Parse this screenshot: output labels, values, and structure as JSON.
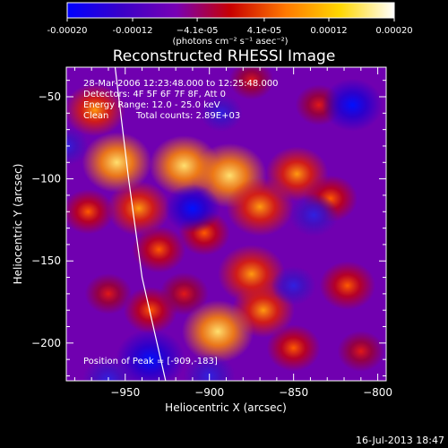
{
  "chart_data": {
    "type": "heatmap",
    "title": "Reconstructed RHESSI Image",
    "xlabel": "Heliocentric X (arcsec)",
    "ylabel": "Heliocentric Y (arcsec)",
    "xlim": [
      -985,
      -795
    ],
    "ylim": [
      -223,
      -32
    ],
    "x_ticks": [
      -950,
      -900,
      -850,
      -800
    ],
    "x_tick_labels": [
      "−950",
      "−900",
      "−850",
      "−800"
    ],
    "y_ticks": [
      -50,
      -100,
      -150,
      -200
    ],
    "y_tick_labels": [
      "−50",
      "−100",
      "−150",
      "−200"
    ],
    "colorbar": {
      "range": [
        -0.0002,
        0.0002
      ],
      "ticks": [
        -0.0002,
        -0.00012,
        -4.1e-05,
        4.1e-05,
        0.00012,
        0.0002
      ],
      "tick_labels": [
        "-0.00020",
        "-0.00012",
        "−4.1e-05",
        "4.1e-05",
        "0.00012",
        "0.00020"
      ],
      "units_label": "(photons cm⁻² s⁻¹ asec⁻²)",
      "colors": [
        "#0000ff",
        "#3a00c8",
        "#7800b4",
        "#c80000",
        "#ff7800",
        "#ffd700",
        "#ffffff"
      ]
    },
    "annotations": {
      "time_range": "28-Mar-2006 12:23:48.000 to 12:25:48.000",
      "detectors": "Detectors: 4F 5F 6F 7F 8F, Att 0",
      "energy_range": "Energy Range: 12.0 - 25.0 keV",
      "algorithm": "Clean",
      "total_counts": "Total counts: 2.89E+03",
      "peak_position": "Position of Peak = [-909,-183]"
    },
    "peak": {
      "x": -909,
      "y": -183
    },
    "limb_curve": [
      [
        -956,
        -32
      ],
      [
        -948,
        -100
      ],
      [
        -940,
        -160
      ],
      [
        -926,
        -223
      ]
    ],
    "blobs": [
      {
        "x": -968,
        "y": -58,
        "v": 0.7
      },
      {
        "x": -955,
        "y": -90,
        "v": 0.9
      },
      {
        "x": -942,
        "y": -118,
        "v": 0.75
      },
      {
        "x": -915,
        "y": -92,
        "v": 0.9
      },
      {
        "x": -888,
        "y": -98,
        "v": 1.0
      },
      {
        "x": -870,
        "y": -117,
        "v": 0.85
      },
      {
        "x": -848,
        "y": -97,
        "v": 0.75
      },
      {
        "x": -828,
        "y": -112,
        "v": 0.55
      },
      {
        "x": -903,
        "y": -133,
        "v": 0.5
      },
      {
        "x": -930,
        "y": -143,
        "v": 0.55
      },
      {
        "x": -875,
        "y": -158,
        "v": 0.85
      },
      {
        "x": -868,
        "y": -180,
        "v": 0.75
      },
      {
        "x": -895,
        "y": -193,
        "v": 0.95
      },
      {
        "x": -935,
        "y": -180,
        "v": 0.55
      },
      {
        "x": -850,
        "y": -203,
        "v": 0.55
      },
      {
        "x": -818,
        "y": -165,
        "v": 0.6
      },
      {
        "x": -810,
        "y": -205,
        "v": 0.4
      },
      {
        "x": -972,
        "y": -120,
        "v": 0.5
      },
      {
        "x": -960,
        "y": -170,
        "v": 0.4
      },
      {
        "x": -835,
        "y": -55,
        "v": 0.4
      },
      {
        "x": -875,
        "y": -40,
        "v": 0.35
      },
      {
        "x": -915,
        "y": -170,
        "v": 0.45
      },
      {
        "x": -935,
        "y": -210,
        "v": -0.9
      },
      {
        "x": -910,
        "y": -118,
        "v": -0.6
      },
      {
        "x": -838,
        "y": -122,
        "v": -0.45
      },
      {
        "x": -815,
        "y": -55,
        "v": -0.7
      },
      {
        "x": -960,
        "y": -222,
        "v": -0.5
      },
      {
        "x": -900,
        "y": -220,
        "v": -0.5
      },
      {
        "x": -985,
        "y": -80,
        "v": -0.35
      },
      {
        "x": -850,
        "y": -165,
        "v": -0.35
      },
      {
        "x": -893,
        "y": -60,
        "v": -0.3
      }
    ]
  },
  "footer": {
    "timestamp": "16-Jul-2013 18:47"
  }
}
